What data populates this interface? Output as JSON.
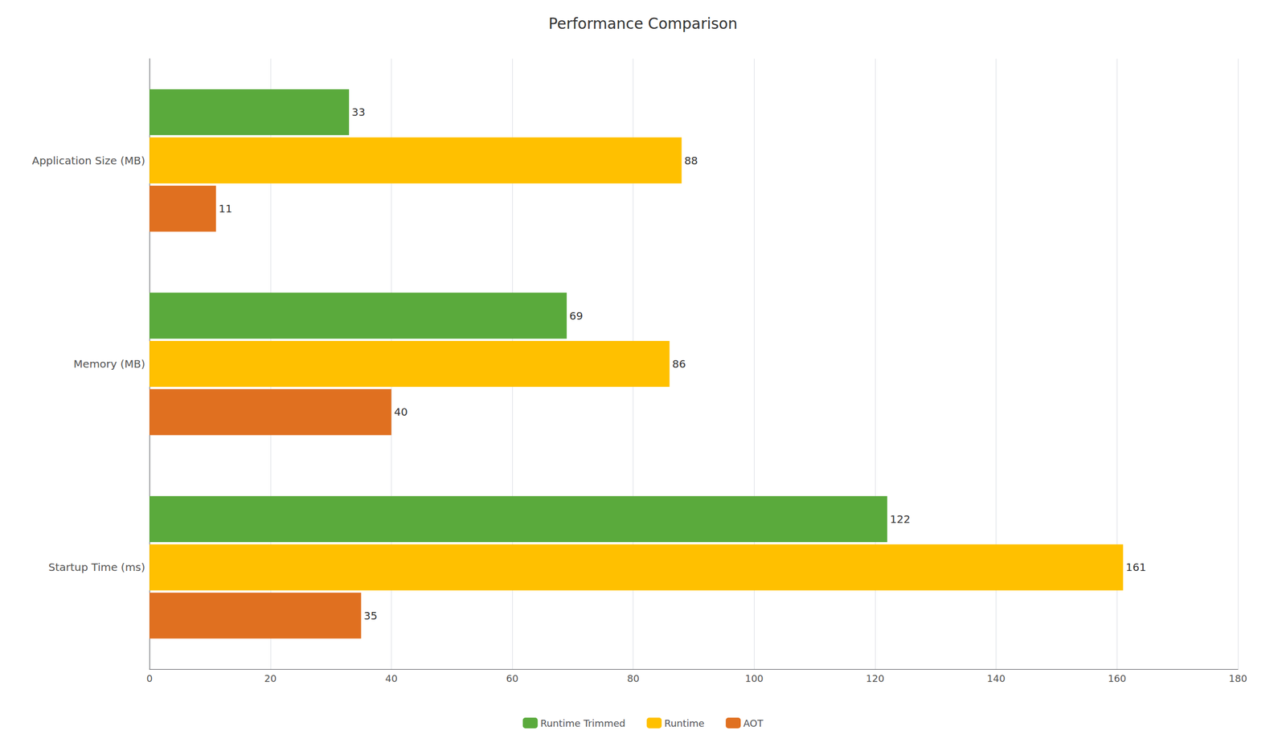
{
  "chart_data": {
    "type": "bar",
    "orientation": "horizontal",
    "title": "Performance Comparison",
    "categories": [
      "Startup Time (ms)",
      "Memory (MB)",
      "Application Size (MB)"
    ],
    "series": [
      {
        "name": "Runtime Trimmed",
        "color": "#5aaa3c",
        "values": [
          122,
          69,
          33
        ]
      },
      {
        "name": "Runtime",
        "color": "#ffc000",
        "values": [
          161,
          86,
          88
        ]
      },
      {
        "name": "AOT",
        "color": "#e07020",
        "values": [
          35,
          40,
          11
        ]
      }
    ],
    "xlim": [
      0,
      180
    ],
    "xticks": [
      0,
      20,
      40,
      60,
      80,
      100,
      120,
      140,
      160,
      180
    ],
    "grid": true,
    "legend": "bottom",
    "data_labels": true
  }
}
